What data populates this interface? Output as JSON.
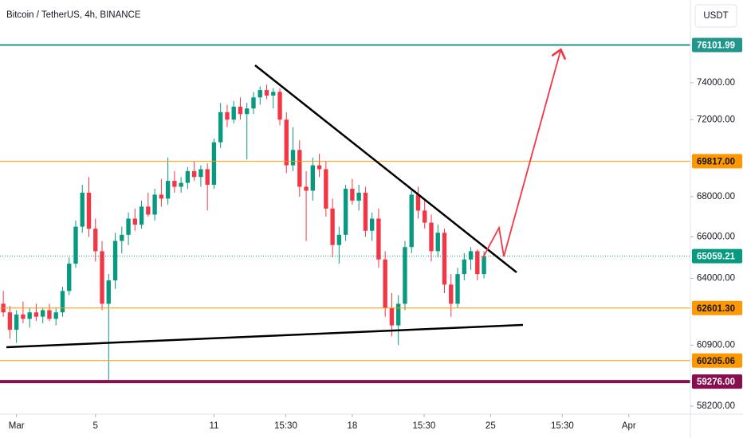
{
  "chart_data": {
    "type": "candlestick",
    "title": "Bitcoin / TetherUS, 4h, BINANCE",
    "currency": "USDT",
    "log_scale": true,
    "up_color": "#089981",
    "down_color": "#f23645",
    "xlim": [
      -0.5,
      104.35
    ],
    "xticks": [
      {
        "value": 2,
        "label": "Mar"
      },
      {
        "value": 14,
        "label": "5"
      },
      {
        "value": 32,
        "label": "11"
      },
      {
        "value": 42.9,
        "label": "15:30"
      },
      {
        "value": 53,
        "label": "18"
      },
      {
        "value": 63.9,
        "label": "15:30"
      },
      {
        "value": 74,
        "label": "25"
      },
      {
        "value": 84.9,
        "label": "15:30"
      },
      {
        "value": 95,
        "label": "Apr"
      }
    ],
    "ylim": [
      57860,
      78690
    ],
    "yticks": [
      {
        "value": 74000,
        "label": "74000.00"
      },
      {
        "value": 72000,
        "label": "72000.00"
      },
      {
        "value": 68000,
        "label": "68000.00"
      },
      {
        "value": 66000,
        "label": "66000.00"
      },
      {
        "value": 64000,
        "label": "64000.00"
      },
      {
        "value": 60900,
        "label": "60900.00"
      },
      {
        "value": 58200,
        "label": "58200.00"
      }
    ],
    "levels": [
      {
        "price": 76101.99,
        "label": "76101.99",
        "color": "#22968c",
        "text_color": "#ffffff",
        "style": "solid",
        "width": 2
      },
      {
        "price": 69817,
        "label": "69817.00",
        "color": "#ff9800",
        "text_color": "#131722",
        "style": "solid",
        "width": 1
      },
      {
        "price": 65059.21,
        "label": "65059.21",
        "color": "#089981",
        "text_color": "#ffffff",
        "style": "dotted",
        "width": 1
      },
      {
        "price": 62601.3,
        "label": "62601.30",
        "color": "#ff9800",
        "text_color": "#131722",
        "style": "solid",
        "width": 1
      },
      {
        "price": 60205.06,
        "label": "60205.06",
        "color": "#ff9800",
        "text_color": "#131722",
        "style": "solid",
        "width": 1
      },
      {
        "price": 59276,
        "label": "59276.00",
        "color": "#880e4f",
        "text_color": "#ffffff",
        "style": "solid",
        "width": 4
      }
    ],
    "candles": [
      [
        62800,
        63400,
        62200,
        62400
      ],
      [
        62400,
        62700,
        61200,
        61600
      ],
      [
        61600,
        62500,
        61000,
        62300
      ],
      [
        62300,
        62900,
        61900,
        62100
      ],
      [
        62100,
        62600,
        61700,
        62400
      ],
      [
        62400,
        62800,
        62000,
        62200
      ],
      [
        62200,
        62600,
        61900,
        62500
      ],
      [
        62500,
        62800,
        62000,
        62100
      ],
      [
        62100,
        62600,
        61800,
        62400
      ],
      [
        62400,
        63600,
        62200,
        63400
      ],
      [
        63400,
        65000,
        63200,
        64700
      ],
      [
        64700,
        66800,
        64500,
        66500
      ],
      [
        66500,
        68600,
        66200,
        68200
      ],
      [
        68200,
        69000,
        66000,
        66400
      ],
      [
        66400,
        66900,
        64800,
        65300
      ],
      [
        65300,
        65800,
        62500,
        62800
      ],
      [
        62800,
        64200,
        59300,
        63900
      ],
      [
        63900,
        66200,
        63500,
        65800
      ],
      [
        65800,
        66500,
        65200,
        66100
      ],
      [
        66100,
        67200,
        65600,
        66900
      ],
      [
        66900,
        67400,
        66300,
        66600
      ],
      [
        66600,
        67800,
        66400,
        67500
      ],
      [
        67500,
        68200,
        67000,
        67100
      ],
      [
        67100,
        68400,
        66800,
        68100
      ],
      [
        68100,
        68900,
        67500,
        67900
      ],
      [
        67900,
        70000,
        67600,
        68800
      ],
      [
        68800,
        69300,
        68200,
        68500
      ],
      [
        68500,
        69000,
        68200,
        68700
      ],
      [
        68700,
        69500,
        68400,
        69300
      ],
      [
        69300,
        69800,
        68800,
        69000
      ],
      [
        69000,
        69600,
        68500,
        69400
      ],
      [
        69400,
        69700,
        67300,
        68600
      ],
      [
        68600,
        71000,
        68400,
        70800
      ],
      [
        70800,
        72900,
        70500,
        72400
      ],
      [
        72400,
        72800,
        71600,
        72000
      ],
      [
        72000,
        73000,
        71800,
        72700
      ],
      [
        72700,
        73200,
        72000,
        72300
      ],
      [
        72300,
        72900,
        69900,
        72600
      ],
      [
        72600,
        73500,
        72300,
        73200
      ],
      [
        73200,
        73800,
        72800,
        73600
      ],
      [
        73600,
        73900,
        73100,
        73300
      ],
      [
        73300,
        73700,
        72600,
        73500
      ],
      [
        73500,
        73700,
        71700,
        72000
      ],
      [
        72000,
        72400,
        69200,
        69600
      ],
      [
        69600,
        71600,
        69300,
        70400
      ],
      [
        70400,
        70900,
        68000,
        68500
      ],
      [
        68500,
        69300,
        65800,
        68300
      ],
      [
        68300,
        70000,
        67800,
        69600
      ],
      [
        69600,
        70200,
        69000,
        69400
      ],
      [
        69400,
        69800,
        67000,
        67400
      ],
      [
        67400,
        67900,
        65000,
        65600
      ],
      [
        65600,
        66500,
        64700,
        66100
      ],
      [
        66100,
        68600,
        65800,
        68400
      ],
      [
        68400,
        68900,
        67600,
        67800
      ],
      [
        67800,
        68600,
        67300,
        68200
      ],
      [
        68200,
        68500,
        66000,
        66300
      ],
      [
        66300,
        67200,
        65800,
        66900
      ],
      [
        66900,
        67400,
        64500,
        64900
      ],
      [
        64900,
        65300,
        62200,
        62600
      ],
      [
        62600,
        63300,
        61300,
        61800
      ],
      [
        61800,
        63200,
        60900,
        62800
      ],
      [
        62800,
        65800,
        62500,
        65500
      ],
      [
        65500,
        68400,
        65200,
        68100
      ],
      [
        68100,
        68500,
        66900,
        67300
      ],
      [
        67300,
        67800,
        66400,
        66700
      ],
      [
        66700,
        67100,
        64800,
        65300
      ],
      [
        65300,
        66600,
        65000,
        66200
      ],
      [
        66200,
        66400,
        63300,
        63700
      ],
      [
        63700,
        64200,
        62200,
        62800
      ],
      [
        62800,
        64500,
        62600,
        64200
      ],
      [
        64200,
        65200,
        63900,
        64900
      ],
      [
        64900,
        65500,
        64400,
        65300
      ],
      [
        65300,
        65400,
        63900,
        64200
      ],
      [
        64200,
        65300,
        64000,
        65059.21
      ]
    ]
  }
}
